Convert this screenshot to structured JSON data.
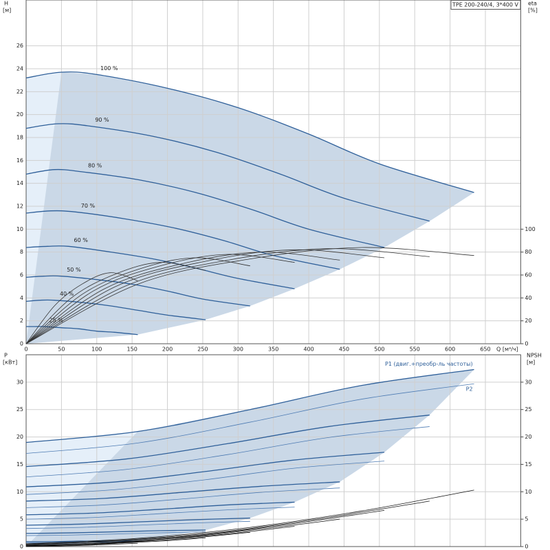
{
  "chart_data": [
    {
      "type": "line",
      "title": "TPE 200-240/4, 3*400 V",
      "x_label": "Q [м³/ч]",
      "y_label": "H",
      "y_unit": "[м]",
      "y2_label": "eta",
      "y2_unit": "[%]",
      "xlim": [
        0,
        700
      ],
      "xticks": [
        0,
        50,
        100,
        150,
        200,
        250,
        300,
        350,
        400,
        450,
        500,
        550,
        600,
        650
      ],
      "ylim": [
        0,
        30
      ],
      "yticks": [
        0,
        2,
        4,
        6,
        8,
        10,
        12,
        14,
        16,
        18,
        20,
        22,
        24,
        26
      ],
      "y2lim": [
        0,
        300
      ],
      "y2ticks": [
        0,
        20,
        40,
        60,
        80,
        100
      ],
      "grid": true,
      "area_color": "#cad8e7",
      "area_light_color": "#e5eff9",
      "series": [
        {
          "name": "100 %",
          "color": "#2e5f99",
          "x": [
            0,
            50,
            100,
            200,
            300,
            400,
            500,
            634
          ],
          "values": [
            23.2,
            23.7,
            23.5,
            22.3,
            20.6,
            18.3,
            15.7,
            13.2
          ]
        },
        {
          "name": "90 %",
          "color": "#2e5f99",
          "x": [
            0,
            45,
            90,
            180,
            270,
            360,
            450,
            571
          ],
          "values": [
            18.8,
            19.2,
            19.0,
            18.1,
            16.7,
            14.8,
            12.7,
            10.7
          ]
        },
        {
          "name": "80 %",
          "color": "#2e5f99",
          "x": [
            0,
            40,
            80,
            160,
            240,
            320,
            400,
            507
          ],
          "values": [
            14.8,
            15.2,
            15.0,
            14.3,
            13.2,
            11.7,
            10.0,
            8.4
          ]
        },
        {
          "name": "70 %",
          "color": "#2e5f99",
          "x": [
            0,
            35,
            70,
            140,
            210,
            280,
            350,
            444
          ],
          "values": [
            11.4,
            11.6,
            11.5,
            10.9,
            10.1,
            9.0,
            7.7,
            6.5
          ]
        },
        {
          "name": "60 %",
          "color": "#2e5f99",
          "x": [
            0,
            30,
            60,
            120,
            180,
            240,
            300,
            380
          ],
          "values": [
            8.4,
            8.5,
            8.5,
            8.0,
            7.4,
            6.6,
            5.7,
            4.8
          ]
        },
        {
          "name": "50 %",
          "color": "#2e5f99",
          "x": [
            0,
            25,
            50,
            100,
            150,
            200,
            250,
            317
          ],
          "values": [
            5.8,
            5.9,
            5.9,
            5.6,
            5.2,
            4.6,
            3.9,
            3.3
          ]
        },
        {
          "name": "40 %",
          "color": "#2e5f99",
          "x": [
            0,
            20,
            40,
            80,
            120,
            160,
            200,
            254
          ],
          "values": [
            3.7,
            3.8,
            3.8,
            3.6,
            3.3,
            2.9,
            2.5,
            2.1
          ]
        },
        {
          "name": "25 %",
          "color": "#2e5f99",
          "x": [
            0,
            12.5,
            25,
            50,
            75,
            100,
            125,
            158
          ],
          "values": [
            1.5,
            1.5,
            1.5,
            1.4,
            1.3,
            1.1,
            1.0,
            0.8
          ]
        },
        {
          "axis": "y2",
          "color": "#333333",
          "x": [
            0,
            158,
            317,
            475,
            634
          ],
          "values": [
            0,
            52,
            74,
            84,
            77
          ]
        },
        {
          "axis": "y2",
          "color": "#333333",
          "x": [
            0,
            143,
            286,
            428,
            571
          ],
          "values": [
            0,
            51,
            73,
            83,
            76
          ]
        },
        {
          "axis": "y2",
          "color": "#333333",
          "x": [
            0,
            127,
            254,
            380,
            507
          ],
          "values": [
            0,
            50,
            72,
            82,
            75
          ]
        },
        {
          "axis": "y2",
          "color": "#333333",
          "x": [
            0,
            111,
            222,
            333,
            444
          ],
          "values": [
            0,
            48,
            70,
            80,
            73
          ]
        },
        {
          "axis": "y2",
          "color": "#333333",
          "x": [
            0,
            95,
            190,
            285,
            380
          ],
          "values": [
            0,
            46,
            68,
            78,
            71
          ]
        },
        {
          "axis": "y2",
          "color": "#333333",
          "x": [
            0,
            79,
            159,
            238,
            317
          ],
          "values": [
            0,
            43,
            65,
            75,
            68
          ]
        },
        {
          "axis": "y2",
          "color": "#333333",
          "x": [
            0,
            64,
            127,
            190,
            254
          ],
          "values": [
            0,
            40,
            61,
            71,
            64
          ]
        },
        {
          "axis": "y2",
          "color": "#333333",
          "x": [
            0,
            40,
            79,
            119,
            158
          ],
          "values": [
            0,
            33,
            52,
            62,
            55
          ]
        }
      ]
    },
    {
      "type": "line",
      "y_label": "P",
      "y_unit": "[кВт]",
      "y2_label": "NPSH",
      "y2_unit": "[м]",
      "xlim": [
        0,
        700
      ],
      "ylim": [
        0,
        35
      ],
      "yticks": [
        0,
        5,
        10,
        15,
        20,
        25,
        30
      ],
      "y2lim": [
        0,
        35
      ],
      "y2ticks": [
        0,
        5,
        10,
        15,
        20,
        25,
        30
      ],
      "grid": true,
      "area_color": "#cad8e7",
      "area_light_color": "#e5eff9",
      "series": [
        {
          "name": "P1 (двиг.+преобр-ль частоты)",
          "color": "#2e5f99",
          "x": [
            0,
            158,
            317,
            475,
            634
          ],
          "values": [
            19,
            21.0,
            25.0,
            29.4,
            32.3
          ]
        },
        {
          "color": "#2e5f99",
          "x": [
            0,
            143,
            286,
            428,
            571
          ],
          "values": [
            14.6,
            16.0,
            18.8,
            21.9,
            24.0
          ]
        },
        {
          "color": "#2e5f99",
          "x": [
            0,
            127,
            254,
            380,
            507
          ],
          "values": [
            10.9,
            11.8,
            13.7,
            15.8,
            17.2
          ]
        },
        {
          "color": "#2e5f99",
          "x": [
            0,
            111,
            222,
            333,
            444
          ],
          "values": [
            8.3,
            8.8,
            9.9,
            11.0,
            11.8
          ]
        },
        {
          "color": "#2e5f99",
          "x": [
            0,
            95,
            190,
            285,
            380
          ],
          "values": [
            5.8,
            6.1,
            6.8,
            7.6,
            8.1
          ]
        },
        {
          "color": "#2e5f99",
          "x": [
            0,
            79,
            159,
            238,
            317
          ],
          "values": [
            3.9,
            4.1,
            4.5,
            4.9,
            5.2
          ]
        },
        {
          "color": "#2e5f99",
          "x": [
            0,
            64,
            127,
            190,
            254
          ],
          "values": [
            2.4,
            2.5,
            2.7,
            2.9,
            3.0
          ]
        },
        {
          "color": "#2e5f99",
          "x": [
            0,
            40,
            79,
            119,
            158
          ],
          "values": [
            0.9,
            0.9,
            1.0,
            1.0,
            1.0
          ]
        },
        {
          "name": "P2",
          "color": "#4d7bb3",
          "x": [
            0,
            158,
            317,
            475,
            634
          ],
          "values": [
            17,
            18.9,
            22.7,
            26.9,
            29.7
          ]
        },
        {
          "color": "#4d7bb3",
          "x": [
            0,
            143,
            286,
            428,
            571
          ],
          "values": [
            12.7,
            14.1,
            16.8,
            19.9,
            21.9
          ]
        },
        {
          "color": "#4d7bb3",
          "x": [
            0,
            127,
            254,
            380,
            507
          ],
          "values": [
            9.5,
            10.4,
            12.2,
            14.3,
            15.6
          ]
        },
        {
          "color": "#4d7bb3",
          "x": [
            0,
            111,
            222,
            333,
            444
          ],
          "values": [
            7.1,
            7.6,
            8.7,
            9.9,
            10.7
          ]
        },
        {
          "color": "#4d7bb3",
          "x": [
            0,
            95,
            190,
            285,
            380
          ],
          "values": [
            5.0,
            5.3,
            6.0,
            6.7,
            7.2
          ]
        },
        {
          "color": "#4d7bb3",
          "x": [
            0,
            79,
            159,
            238,
            317
          ],
          "values": [
            3.3,
            3.5,
            3.9,
            4.3,
            4.6
          ]
        },
        {
          "color": "#4d7bb3",
          "x": [
            0,
            64,
            127,
            190,
            254
          ],
          "values": [
            2.0,
            2.1,
            2.3,
            2.5,
            2.7
          ]
        },
        {
          "color": "#4d7bb3",
          "x": [
            0,
            40,
            79,
            119,
            158
          ],
          "values": [
            0.7,
            0.7,
            0.8,
            0.8,
            0.8
          ]
        },
        {
          "axis": "y2",
          "color": "#111111",
          "x": [
            0,
            158,
            317,
            475,
            634
          ],
          "values": [
            0.5,
            1.5,
            3.5,
            6.5,
            10.3
          ]
        },
        {
          "axis": "y2",
          "color": "#111111",
          "x": [
            0,
            143,
            286,
            428,
            571
          ],
          "values": [
            0.4,
            1.2,
            2.8,
            5.3,
            8.3
          ]
        },
        {
          "axis": "y2",
          "color": "#111111",
          "x": [
            0,
            127,
            254,
            380,
            507
          ],
          "values": [
            0.3,
            1.0,
            2.2,
            4.2,
            6.6
          ]
        },
        {
          "axis": "y2",
          "color": "#111111",
          "x": [
            0,
            111,
            222,
            333,
            444
          ],
          "values": [
            0.2,
            0.7,
            1.7,
            3.2,
            5.0
          ]
        },
        {
          "axis": "y2",
          "color": "#111111",
          "x": [
            0,
            95,
            190,
            285,
            380
          ],
          "values": [
            0.2,
            0.5,
            1.3,
            2.3,
            3.7
          ]
        },
        {
          "axis": "y2",
          "color": "#111111",
          "x": [
            0,
            79,
            159,
            238,
            317
          ],
          "values": [
            0.1,
            0.4,
            0.9,
            1.6,
            2.6
          ]
        },
        {
          "axis": "y2",
          "color": "#111111",
          "x": [
            0,
            64,
            127,
            190,
            254
          ],
          "values": [
            0.1,
            0.2,
            0.6,
            1.0,
            1.6
          ]
        },
        {
          "axis": "y2",
          "color": "#111111",
          "x": [
            0,
            40,
            79,
            119,
            158
          ],
          "values": [
            0,
            0.1,
            0.2,
            0.4,
            0.6
          ]
        }
      ]
    }
  ]
}
